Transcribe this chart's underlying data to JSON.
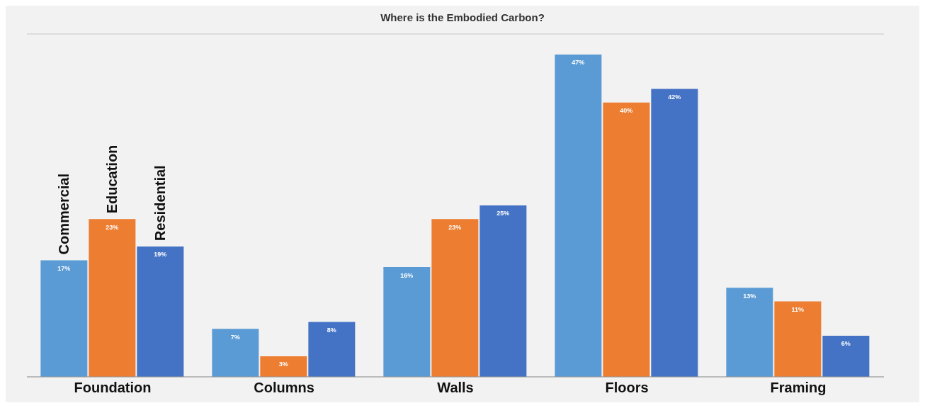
{
  "chart_data": {
    "type": "bar",
    "title": "Where is the Embodied Carbon?",
    "categories": [
      "Foundation",
      "Columns",
      "Walls",
      "Floors",
      "Framing"
    ],
    "series": [
      {
        "name": "Commercial",
        "color": "#5b9bd5",
        "values": [
          17,
          7,
          16,
          47,
          13
        ],
        "value_labels": [
          "17%",
          "7%",
          "16%",
          "47%",
          "13%"
        ]
      },
      {
        "name": "Education",
        "color": "#ed7d31",
        "values": [
          23,
          3,
          23,
          40,
          11
        ],
        "value_labels": [
          "23%",
          "3%",
          "23%",
          "40%",
          "11%"
        ]
      },
      {
        "name": "Residential",
        "color": "#4472c4",
        "values": [
          19,
          8,
          25,
          42,
          6
        ],
        "value_labels": [
          "19%",
          "8%",
          "25%",
          "42%",
          "6%"
        ]
      }
    ],
    "ylim": [
      0,
      50
    ],
    "grid": "y",
    "tick_labels": "x"
  }
}
